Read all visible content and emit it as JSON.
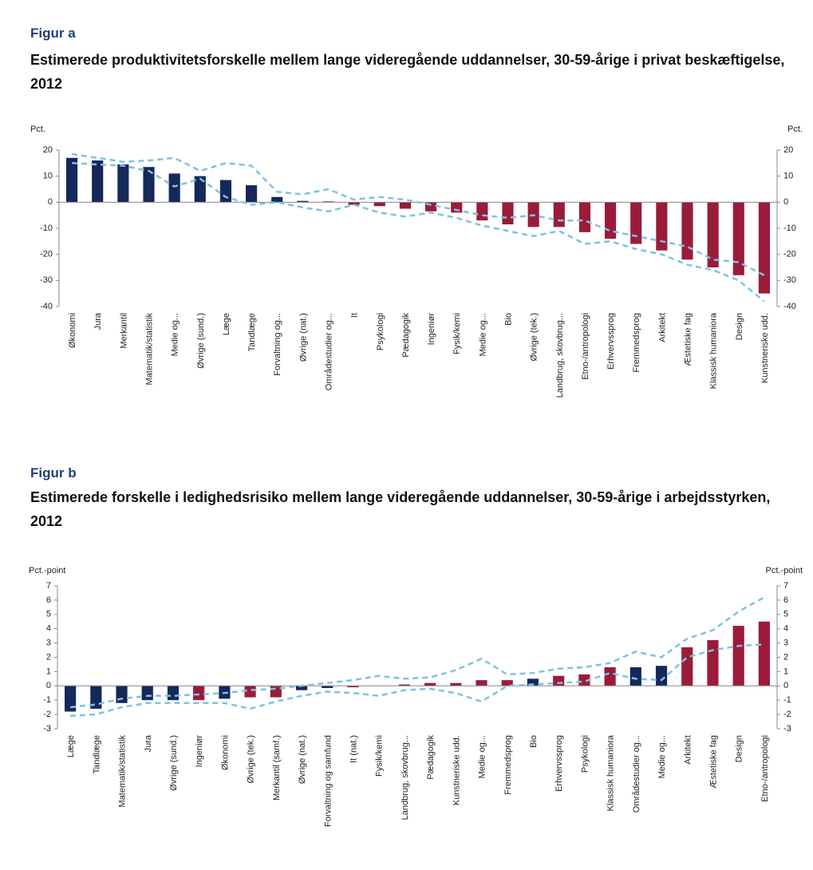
{
  "chart_data": [
    {
      "type": "bar",
      "figure": "Figur a",
      "title": "Estimerede produktivitetsforskelle mellem lange videregående uddannelser, 30-59-årige i privat beskæftigelse, 2012",
      "y_label": "Pct.",
      "y2_label": "Pct.",
      "categories": [
        "Økonomi",
        "Jura",
        "Merkantil",
        "Matematik/statistik",
        "Medie og...",
        "Øvrige (sund.)",
        "Læge",
        "Tandlæge",
        "Forvaltning og...",
        "Øvrige (nat.)",
        "Områdestudier og...",
        "It",
        "Psykologi",
        "Pædagogik",
        "Ingeniør",
        "Fysik/kemi",
        "Medie og...",
        "Bio",
        "Øvrige (tek.)",
        "Landbrug, skovbrug...",
        "Etno-/antropologi",
        "Erhvervssprog",
        "Fremmedsprog",
        "Arkitekt",
        "Æstetiske fag",
        "Klassisk humaniora",
        "Design",
        "Kunstneriske udd."
      ],
      "values": [
        17,
        16,
        14.5,
        13.5,
        11,
        10,
        8.5,
        6.5,
        2,
        0.5,
        0.3,
        -1,
        -1.5,
        -2.5,
        -3.5,
        -4,
        -7,
        -8.5,
        -9.5,
        -9.5,
        -11.5,
        -14,
        -16,
        -18.5,
        -22,
        -25,
        -28,
        -35
      ],
      "bar_colors": [
        "#14285a",
        "#14285a",
        "#14285a",
        "#14285a",
        "#14285a",
        "#14285a",
        "#14285a",
        "#14285a",
        "#14285a",
        "#14285a",
        "#14285a",
        "#9b1b3a",
        "#9b1b3a",
        "#9b1b3a",
        "#9b1b3a",
        "#9b1b3a",
        "#9b1b3a",
        "#9b1b3a",
        "#9b1b3a",
        "#9b1b3a",
        "#9b1b3a",
        "#9b1b3a",
        "#9b1b3a",
        "#9b1b3a",
        "#9b1b3a",
        "#9b1b3a",
        "#9b1b3a",
        "#9b1b3a"
      ],
      "band_upper": [
        18.5,
        17,
        15.5,
        16,
        17,
        12,
        15,
        14,
        4,
        3,
        5,
        1,
        2,
        1,
        -1,
        -3,
        -5,
        -6,
        -5,
        -7,
        -7,
        -11,
        -13,
        -15,
        -17,
        -22,
        -23,
        -28
      ],
      "band_lower": [
        15,
        14.5,
        14,
        12,
        6,
        9,
        2,
        -1,
        0,
        -2,
        -3.5,
        -1,
        -4,
        -5.5,
        -4,
        -6,
        -9,
        -11,
        -13,
        -11,
        -16,
        -15,
        -18,
        -20,
        -24,
        -26,
        -30,
        -38
      ],
      "band_color": "#7cc3e0",
      "ylim": [
        -40,
        20
      ],
      "yticks": [
        -40,
        -30,
        -20,
        -10,
        0,
        10,
        20
      ],
      "y2lim": [
        -40,
        20
      ],
      "y2ticks": [
        -40,
        -30,
        -20,
        -10,
        0,
        10,
        20
      ]
    },
    {
      "type": "bar",
      "figure": "Figur b",
      "title": "Estimerede forskelle i ledighedsrisiko mellem lange videregående uddannelser, 30-59-årige i arbejdsstyrken, 2012",
      "y_label": "Pct.-point",
      "y2_label": "Pct.-point",
      "categories": [
        "Læge",
        "Tandlæge",
        "Matematik/statistik",
        "Jura",
        "Øvrige (sund.)",
        "Ingeniør",
        "Økonomi",
        "Øvrige (tek.)",
        "Merkantil (samf.)",
        "Øvrige (nat.)",
        "Forvaltning og samfund",
        "It (nat.)",
        "Fysik/kemi",
        "Landbrug, skovbrug...",
        "Pædagogik",
        "Kunstneriske udd.",
        "Medie og...",
        "Fremmedsprog",
        "Bio",
        "Erhvervssprog",
        "Psykologi",
        "Klassisk humaniora",
        "Områdestudier og...",
        "Medie og...",
        "Arkitekt",
        "Æstetiske fag",
        "Design",
        "Etno-/antropologi"
      ],
      "values": [
        -1.8,
        -1.6,
        -1.2,
        -1.0,
        -1.0,
        -1.0,
        -0.9,
        -0.8,
        -0.8,
        -0.3,
        -0.15,
        -0.1,
        0,
        0.1,
        0.2,
        0.2,
        0.4,
        0.4,
        0.5,
        0.7,
        0.8,
        1.3,
        1.3,
        1.4,
        2.7,
        3.2,
        4.2,
        4.5
      ],
      "bar_colors": [
        "#14285a",
        "#14285a",
        "#14285a",
        "#14285a",
        "#14285a",
        "#9b1b3a",
        "#14285a",
        "#9b1b3a",
        "#9b1b3a",
        "#14285a",
        "#14285a",
        "#9b1b3a",
        "#9b1b3a",
        "#9b1b3a",
        "#9b1b3a",
        "#9b1b3a",
        "#9b1b3a",
        "#9b1b3a",
        "#14285a",
        "#9b1b3a",
        "#9b1b3a",
        "#9b1b3a",
        "#14285a",
        "#14285a",
        "#9b1b3a",
        "#9b1b3a",
        "#9b1b3a",
        "#9b1b3a"
      ],
      "band_upper": [
        -1.5,
        -1.3,
        -0.9,
        -0.7,
        -0.7,
        -0.6,
        -0.5,
        -0.3,
        -0.2,
        0,
        0.2,
        0.4,
        0.7,
        0.5,
        0.6,
        1.1,
        1.9,
        0.8,
        0.9,
        1.2,
        1.3,
        1.6,
        2.4,
        2.0,
        3.3,
        3.9,
        5.2,
        6.2
      ],
      "band_lower": [
        -2.1,
        -2.0,
        -1.5,
        -1.2,
        -1.2,
        -1.2,
        -1.2,
        -1.6,
        -1.1,
        -0.7,
        -0.4,
        -0.5,
        -0.7,
        -0.3,
        -0.2,
        -0.5,
        -1.1,
        0,
        0.1,
        0.2,
        0.3,
        0.9,
        0.5,
        0.4,
        2.0,
        2.5,
        2.8,
        2.9
      ],
      "band_color": "#7cc3e0",
      "ylim": [
        -3,
        7
      ],
      "yticks": [
        -3,
        -2,
        -1,
        0,
        1,
        2,
        3,
        4,
        5,
        6,
        7
      ],
      "y2lim": [
        -3,
        7
      ],
      "y2ticks": [
        -3,
        -2,
        -1,
        0,
        1,
        2,
        3,
        4,
        5,
        6,
        7
      ]
    }
  ]
}
